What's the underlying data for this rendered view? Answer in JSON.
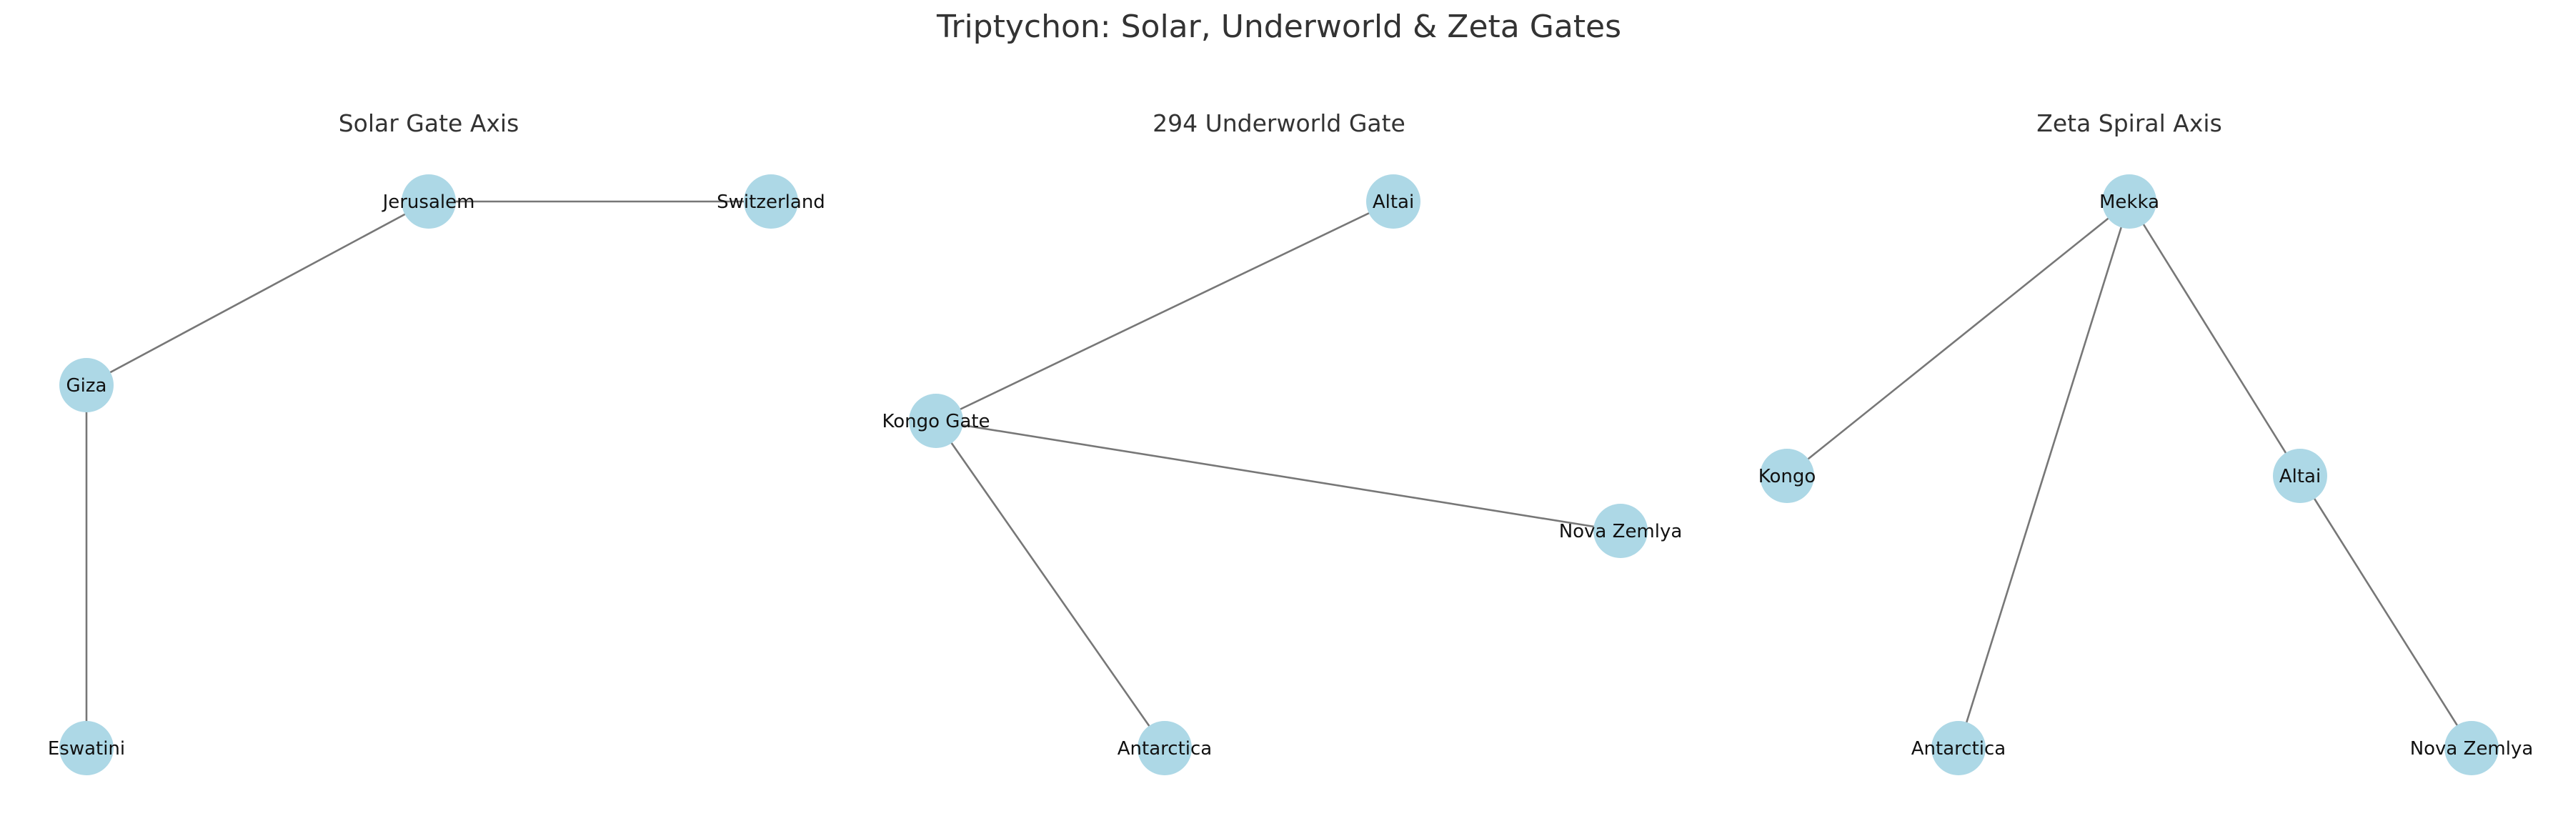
{
  "figure": {
    "title": "Triptychon: Solar, Underworld & Zeta Gates",
    "node_color": "#ADD8E6",
    "edge_color": "#777777"
  },
  "graphs": [
    {
      "title": "Solar Gate Axis",
      "nodes": [
        "Jerusalem",
        "Switzerland",
        "Giza",
        "Eswatini"
      ],
      "edges": [
        [
          "Jerusalem",
          "Switzerland"
        ],
        [
          "Jerusalem",
          "Giza"
        ],
        [
          "Giza",
          "Eswatini"
        ]
      ]
    },
    {
      "title": "294 Underworld Gate",
      "nodes": [
        "Altai",
        "Kongo Gate",
        "Nova Zemlya",
        "Antarctica"
      ],
      "edges": [
        [
          "Kongo Gate",
          "Altai"
        ],
        [
          "Kongo Gate",
          "Nova Zemlya"
        ],
        [
          "Kongo Gate",
          "Antarctica"
        ]
      ]
    },
    {
      "title": "Zeta Spiral Axis",
      "nodes": [
        "Mekka",
        "Kongo",
        "Altai",
        "Antarctica",
        "Nova Zemlya"
      ],
      "edges": [
        [
          "Mekka",
          "Kongo"
        ],
        [
          "Mekka",
          "Antarctica"
        ],
        [
          "Mekka",
          "Altai"
        ],
        [
          "Altai",
          "Nova Zemlya"
        ]
      ]
    }
  ]
}
